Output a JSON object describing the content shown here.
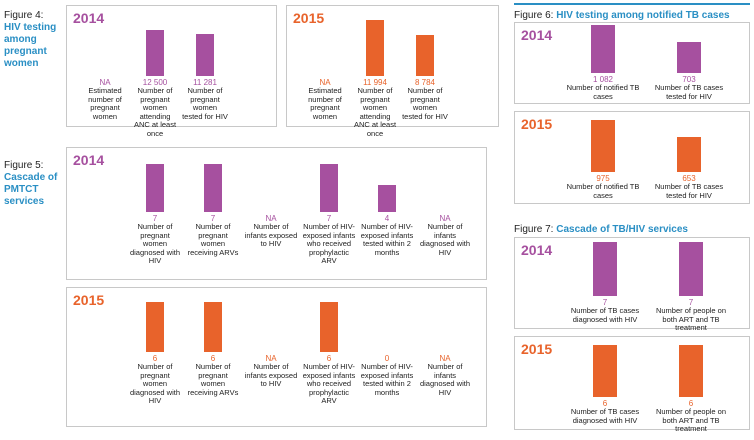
{
  "figures": [
    {
      "label": "Figure 4:",
      "title": "HIV testing among pregnant women"
    },
    {
      "label": "Figure 5:",
      "title": "Cascade of PMTCT services"
    },
    {
      "label": "Figure 6:",
      "title": "HIV testing among notified TB cases"
    },
    {
      "label": "Figure 7:",
      "title": "Cascade of TB/HIV services"
    }
  ],
  "chart_data": [
    {
      "type": "bar",
      "title": "2014",
      "color": "#a6509f",
      "categories": [
        "Estimated number of pregnant women",
        "Number of pregnant women attending ANC at least once",
        "Number of pregnant women tested for HIV"
      ],
      "values": [
        null,
        12500,
        11281
      ],
      "value_labels": [
        "NA",
        "12 500",
        "11 281"
      ]
    },
    {
      "type": "bar",
      "title": "2015",
      "color": "#e8632b",
      "categories": [
        "Estimated number of pregnant women",
        "Number of pregnant women attending ANC at least once",
        "Number of pregnant women tested for HIV"
      ],
      "values": [
        null,
        11994,
        8784
      ],
      "value_labels": [
        "NA",
        "11 994",
        "8 784"
      ]
    },
    {
      "type": "bar",
      "title": "2014",
      "color": "#a6509f",
      "categories": [
        "Number of pregnant women diagnosed with HIV",
        "Number of pregnant women receiving ARVs",
        "Number of infants exposed to HIV",
        "Number of HIV-exposed infants who received prophylactic ARV",
        "Number of HIV-exposed infants tested within 2 months",
        "Number of infants diagnosed with HIV"
      ],
      "values": [
        7,
        7,
        null,
        7,
        4,
        null
      ],
      "value_labels": [
        "7",
        "7",
        "NA",
        "7",
        "4",
        "NA"
      ]
    },
    {
      "type": "bar",
      "title": "2015",
      "color": "#e8632b",
      "categories": [
        "Number of pregnant women diagnosed with HIV",
        "Number of pregnant women receiving ARVs",
        "Number of infants exposed to HIV",
        "Number of HIV-exposed infants who received prophylactic ARV",
        "Number of HIV-exposed infants tested within 2 months",
        "Number of infants diagnosed with HIV"
      ],
      "values": [
        6,
        6,
        null,
        6,
        0,
        null
      ],
      "value_labels": [
        "6",
        "6",
        "NA",
        "6",
        "0",
        "NA"
      ]
    },
    {
      "type": "bar",
      "title": "2014",
      "color": "#a6509f",
      "categories": [
        "Number of notified TB cases",
        "Number of TB cases tested for HIV"
      ],
      "values": [
        1082,
        703
      ],
      "value_labels": [
        "1 082",
        "703"
      ]
    },
    {
      "type": "bar",
      "title": "2015",
      "color": "#e8632b",
      "categories": [
        "Number of notified TB cases",
        "Number of TB cases tested for HIV"
      ],
      "values": [
        975,
        653
      ]
    },
    {
      "type": "bar",
      "title": "2014",
      "color": "#a6509f",
      "categories": [
        "Number of TB cases diagnosed with HIV",
        "Number of people on both ART and TB treatment"
      ],
      "values": [
        7,
        7
      ]
    },
    {
      "type": "bar",
      "title": "2015",
      "color": "#e8632b",
      "categories": [
        "Number of TB cases diagnosed with HIV",
        "Number of people on both ART and TB treatment"
      ],
      "values": [
        6,
        6
      ]
    }
  ]
}
